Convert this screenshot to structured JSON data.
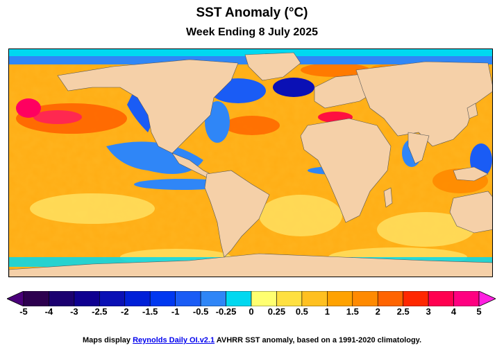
{
  "header": {
    "title": "SST Anomaly (°C)",
    "subtitle": "Week Ending 8 July 2025"
  },
  "colorbar": {
    "ticks": [
      "-5",
      "-4",
      "-3",
      "-2.5",
      "-2",
      "-1.5",
      "-1",
      "-0.5",
      "-0.25",
      "0",
      "0.25",
      "0.5",
      "1",
      "1.5",
      "2",
      "2.5",
      "3",
      "4",
      "5"
    ],
    "colors": [
      "#2d004f",
      "#1b0070",
      "#0f0090",
      "#0a10b5",
      "#0020d8",
      "#0038f0",
      "#1a5cf5",
      "#2f86f7",
      "#00d8f0",
      "#ffff70",
      "#ffe040",
      "#ffc020",
      "#ffa200",
      "#ff8a00",
      "#ff6400",
      "#ff2800",
      "#ff0050",
      "#ff0080"
    ],
    "low_extend_color": "#4a007a",
    "high_extend_color": "#ff20e0"
  },
  "map": {
    "colors": {
      "ocean_warm": "#ffa200",
      "ocean_neutral": "#ffe050",
      "ocean_cool": "#2f86f7",
      "ocean_cold": "#0a10b5",
      "ice_edge": "#00d8f0",
      "land": "#f5d0a8",
      "hot": "#ff2850",
      "coast": "#555555"
    }
  },
  "footer": {
    "prefix": "Maps display ",
    "link_text": "Reynolds Daily OI.v2.1",
    "suffix": " AVHRR SST anomaly, based on a 1991-2020 climatology."
  }
}
